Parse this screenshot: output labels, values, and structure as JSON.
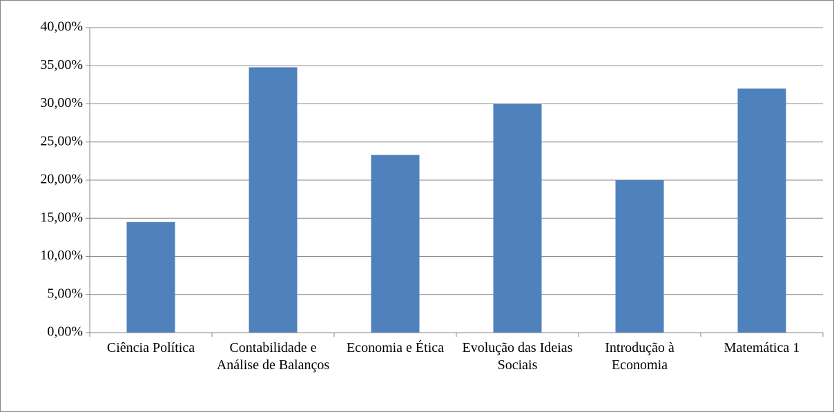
{
  "chart_data": {
    "type": "bar",
    "categories": [
      "Ciência Política",
      "Contabilidade e Análise de Balanços",
      "Economia e Ética",
      "Evolução das Ideias Sociais",
      "Introdução à Economia",
      "Matemática 1"
    ],
    "values": [
      14.5,
      34.8,
      23.3,
      30.0,
      20.0,
      32.0
    ],
    "color": "#4f81bd",
    "ylim": [
      0,
      40
    ],
    "yticks": [
      {
        "value": 0,
        "label": "0,00%"
      },
      {
        "value": 5,
        "label": "5,00%"
      },
      {
        "value": 10,
        "label": "10,00%"
      },
      {
        "value": 15,
        "label": "15,00%"
      },
      {
        "value": 20,
        "label": "20,00%"
      },
      {
        "value": 25,
        "label": "25,00%"
      },
      {
        "value": 30,
        "label": "30,00%"
      },
      {
        "value": 35,
        "label": "35,00%"
      },
      {
        "value": 40,
        "label": "40,00%"
      }
    ],
    "grid": true
  }
}
